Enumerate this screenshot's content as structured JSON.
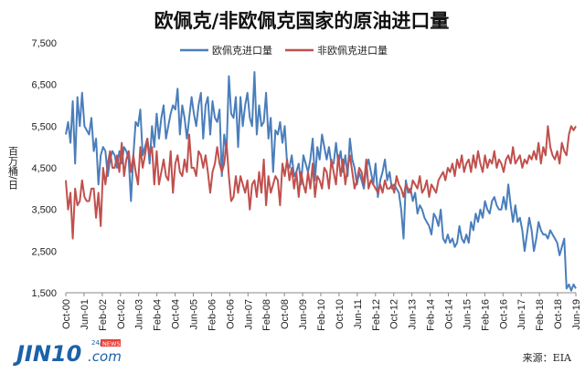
{
  "chart_data": {
    "type": "line",
    "title": "欧佩克/非欧佩克国家的原油进口量",
    "ylabel": "百万桶/日",
    "ylim": [
      1500,
      7500
    ],
    "yticks": [
      "1,500",
      "2,500",
      "3,500",
      "4,500",
      "5,500",
      "6,500",
      "7,500"
    ],
    "xticks": [
      "Oct-00",
      "Jun-01",
      "Feb-02",
      "Oct-02",
      "Jun-03",
      "Feb-04",
      "Oct-04",
      "Jun-05",
      "Feb-06",
      "Oct-06",
      "Jun-07",
      "Feb-08",
      "Oct-08",
      "Jun-09",
      "Feb-10",
      "Oct-10",
      "Jun-11",
      "Feb-12",
      "Oct-12",
      "Jun-13",
      "Feb-14",
      "Oct-14",
      "Jun-15",
      "Feb-16",
      "Oct-16",
      "Jun-17",
      "Feb-18",
      "Oct-18",
      "Jun-19"
    ],
    "x_start": "Oct-00",
    "x_end": "Jun-19",
    "grid": false,
    "legend_position": "top-center",
    "series": [
      {
        "name": "欧佩克进口量",
        "color": "#4a7ebb",
        "values": [
          5300,
          5600,
          5100,
          6100,
          4600,
          6200,
          5500,
          6300,
          5500,
          5400,
          5300,
          5700,
          4900,
          5200,
          4100,
          4800,
          5000,
          4900,
          4300,
          4700,
          4900,
          4800,
          4500,
          4900,
          4600,
          5000,
          4900,
          4700,
          3700,
          4800,
          5600,
          5500,
          5900,
          4800,
          5000,
          5200,
          4600,
          5500,
          5000,
          5800,
          5200,
          5700,
          6000,
          5200,
          5500,
          5800,
          6000,
          5900,
          6400,
          5300,
          6000,
          5700,
          5200,
          5700,
          6200,
          5800,
          5500,
          6000,
          6300,
          5200,
          6000,
          6200,
          5300,
          6100,
          5700,
          5600,
          5900,
          4300,
          5300,
          4900,
          6700,
          5800,
          5700,
          6200,
          5000,
          6200,
          5500,
          6000,
          6300,
          5700,
          5500,
          6800,
          5300,
          6000,
          5500,
          5600,
          6300,
          5200,
          5700,
          4400,
          5400,
          5300,
          5600,
          5100,
          5500,
          4600,
          4500,
          4800,
          4300,
          4400,
          4600,
          4100,
          4800,
          4600,
          4400,
          4700,
          5200,
          4200,
          5000,
          4700,
          5300,
          5000,
          4700,
          5000,
          4600,
          4600,
          5100,
          4600,
          4900,
          4400,
          4800,
          4300,
          5200,
          4700,
          4500,
          4100,
          4400,
          4200,
          4000,
          4500,
          4700,
          4400,
          4100,
          4600,
          3800,
          4200,
          4400,
          4700,
          4200,
          4400,
          4000,
          4100,
          4000,
          3900,
          3500,
          2800,
          4200,
          3900,
          4000,
          3700,
          3900,
          3400,
          3600,
          3500,
          3300,
          3200,
          3100,
          2900,
          3400,
          3300,
          3100,
          3500,
          2800,
          2700,
          2900,
          2700,
          2800,
          2600,
          2700,
          3100,
          2800,
          2700,
          2900,
          2700,
          3200,
          3000,
          3400,
          3200,
          3500,
          3300,
          3700,
          3500,
          3400,
          3700,
          3800,
          3600,
          3500,
          3500,
          3800,
          3500,
          4100,
          3600,
          3200,
          3600,
          3200,
          3300,
          3000,
          2500,
          2900,
          3300,
          3000,
          2500,
          2800,
          3200,
          3000,
          2900,
          2900,
          2800,
          3000,
          2900,
          2800,
          2700,
          2400,
          2600,
          2800,
          1600,
          1700,
          1550,
          1700,
          1600
        ]
      },
      {
        "name": "非欧佩克进口量",
        "color": "#c0504d",
        "values": [
          4200,
          3500,
          3900,
          2800,
          4000,
          3600,
          3700,
          4200,
          3800,
          3700,
          3700,
          4000,
          4000,
          3300,
          3900,
          3100,
          4500,
          4100,
          4600,
          4900,
          4500,
          4500,
          4800,
          4400,
          5100,
          4300,
          4700,
          4900,
          4400,
          4800,
          4400,
          4100,
          5000,
          4500,
          4800,
          5200,
          4800,
          5000,
          4100,
          4900,
          4100,
          4400,
          4700,
          4300,
          4200,
          4900,
          3900,
          4600,
          4800,
          4400,
          4300,
          4700,
          4400,
          5300,
          4500,
          4500,
          4300,
          4900,
          4800,
          4500,
          4800,
          4400,
          3900,
          4400,
          4600,
          5000,
          4600,
          4400,
          4600,
          5100,
          4300,
          3700,
          3800,
          4300,
          3900,
          4300,
          4100,
          3900,
          4200,
          3500,
          4100,
          4200,
          3800,
          4400,
          3900,
          4700,
          3600,
          4300,
          3900,
          4100,
          4300,
          4200,
          3600,
          4600,
          4300,
          4700,
          4200,
          4500,
          4000,
          4400,
          3800,
          4400,
          4100,
          3900,
          4400,
          4000,
          4600,
          3800,
          4300,
          4200,
          4000,
          4500,
          4400,
          4000,
          4700,
          4400,
          4100,
          4800,
          4300,
          4700,
          4100,
          4500,
          4800,
          4400,
          4000,
          4200,
          4500,
          4400,
          4100,
          4700,
          4000,
          4200,
          4100,
          4000,
          3900,
          4100,
          3900,
          4200,
          4000,
          4000,
          4100,
          3900,
          4300,
          4100,
          4000,
          3800,
          4100,
          4000,
          3900,
          4200,
          4100,
          4000,
          4300,
          3900,
          4000,
          4200,
          3800,
          4100,
          4000,
          3900,
          4200,
          4300,
          4400,
          4200,
          4500,
          4400,
          4600,
          4300,
          4700,
          4500,
          4800,
          4400,
          4600,
          4700,
          4400,
          4800,
          4500,
          4900,
          4600,
          4400,
          4800,
          4500,
          4700,
          4600,
          4900,
          4500,
          4700,
          4600,
          4400,
          4700,
          4800,
          4600,
          5000,
          4600,
          4700,
          4800,
          4500,
          4700,
          4600,
          4800,
          4700,
          4900,
          4700,
          5100,
          4600,
          5000,
          4800,
          5500,
          5000,
          4800,
          4700,
          4900,
          4600,
          5100,
          4900,
          4800,
          5300,
          5500,
          5400,
          5500
        ]
      }
    ]
  },
  "source": "来源：EIA",
  "logo": {
    "text": "JIN10",
    "suffix": ".com",
    "badge": "24/",
    "news": "NEWS"
  }
}
